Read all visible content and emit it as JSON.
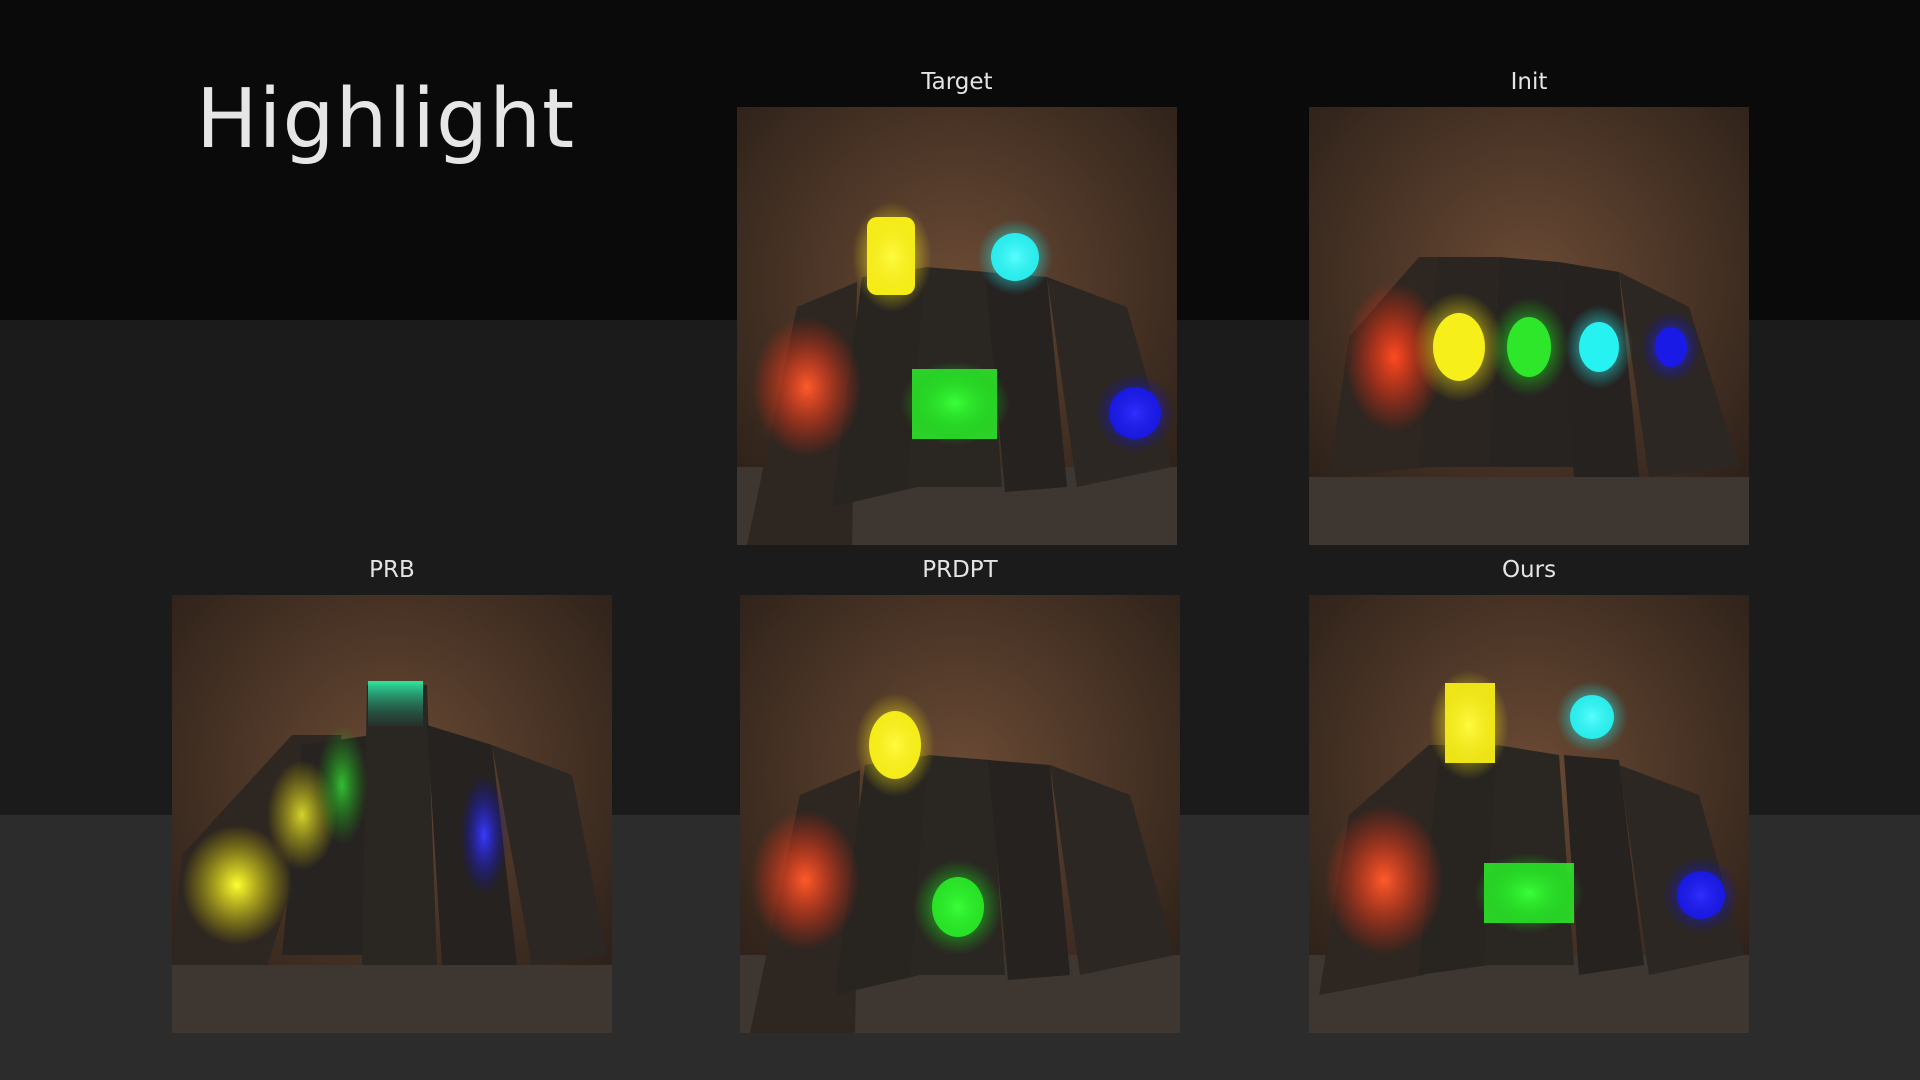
{
  "slide": {
    "title": "Highlight"
  },
  "panels": [
    {
      "id": "target",
      "caption": "Target"
    },
    {
      "id": "init",
      "caption": "Init"
    },
    {
      "id": "prb",
      "caption": "PRB"
    },
    {
      "id": "prdpt",
      "caption": "PRDPT"
    },
    {
      "id": "ours",
      "caption": "Ours"
    }
  ],
  "colors": {
    "red": "#ff3a1a",
    "yellow": "#f7ef1a",
    "green": "#2ee62a",
    "cyan": "#27f2f2",
    "blue": "#1a1ae6",
    "rock": "#5a4030",
    "slab": "#2a2622",
    "floor": "#403a35"
  }
}
